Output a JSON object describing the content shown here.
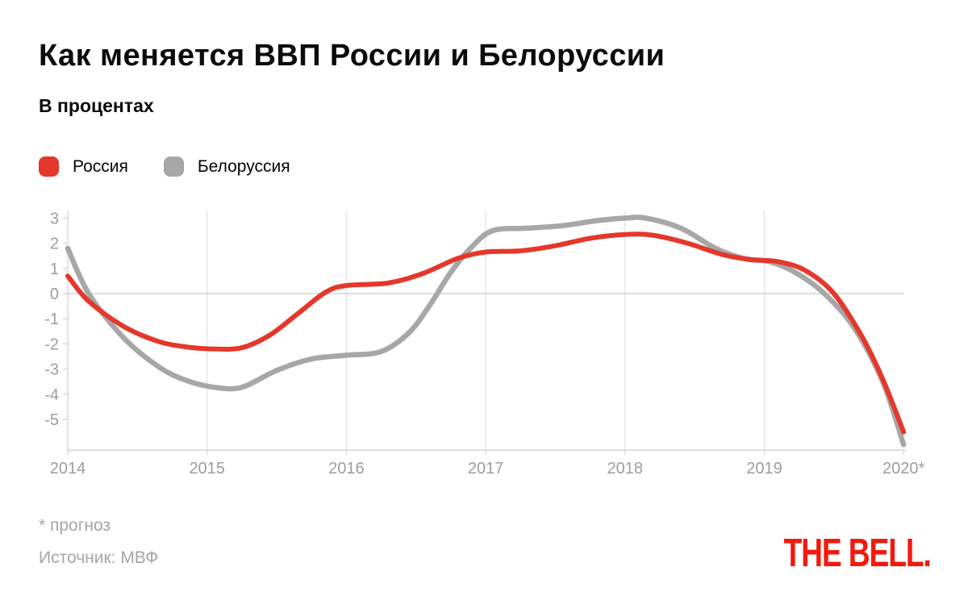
{
  "header": {
    "title": "Как меняется ВВП России и Белоруссии",
    "subtitle": "В процентах"
  },
  "legend": [
    {
      "id": "russia",
      "label": "Россия",
      "color": "#e5372c"
    },
    {
      "id": "belarus",
      "label": "Белоруссия",
      "color": "#a7a7a7"
    }
  ],
  "footer": {
    "footnote": "* прогноз",
    "source": "Источник: МВФ",
    "logo": "THE BELL."
  },
  "colors": {
    "background": "#ffffff",
    "title_text": "#0c0c0c",
    "grid": "#e4e4e4",
    "axis": "#d6d6d6",
    "zero_line": "#c9c9c9",
    "tick_text": "#9d9d9d",
    "footer_text": "#a5a5a5",
    "logo_red": "#f3190d",
    "russia_red": "#e5372c",
    "belarus_gray": "#a7a7a7"
  },
  "chart_data": {
    "type": "line",
    "title": "Как меняется ВВП России и Белоруссии",
    "subtitle": "В процентах",
    "xlabel": "",
    "ylabel": "проценты",
    "x_ticks": [
      "2014",
      "2015",
      "2016",
      "2017",
      "2018",
      "2019",
      "2020*"
    ],
    "y_ticks": [
      3,
      2,
      1,
      0,
      -1,
      -2,
      -3,
      -4,
      -5
    ],
    "xlim": [
      2014,
      2020
    ],
    "ylim": [
      -6.2,
      3.3
    ],
    "grid": "vertical year gridlines + horizontal zero line",
    "legend_position": "top-left above plot",
    "annual_values": {
      "Россия": {
        "2014": 0.7,
        "2015": -2.2,
        "2016": 0.3,
        "2017": 1.7,
        "2018": 2.4,
        "2019": 1.3,
        "2020*": -5.5
      },
      "Белоруссия": {
        "2014": 1.8,
        "2015": -3.7,
        "2016": -2.5,
        "2017": 2.5,
        "2018": 3.0,
        "2019": 1.3,
        "2020*": -6.0
      }
    },
    "series": [
      {
        "id": "belarus",
        "name": "Белоруссия",
        "color": "#a7a7a7",
        "points": [
          [
            2014.0,
            1.8
          ],
          [
            2014.15,
            0.0
          ],
          [
            2014.4,
            -1.75
          ],
          [
            2014.65,
            -2.9
          ],
          [
            2014.85,
            -3.45
          ],
          [
            2015.05,
            -3.72
          ],
          [
            2015.25,
            -3.72
          ],
          [
            2015.5,
            -3.05
          ],
          [
            2015.75,
            -2.6
          ],
          [
            2016.0,
            -2.45
          ],
          [
            2016.25,
            -2.3
          ],
          [
            2016.45,
            -1.55
          ],
          [
            2016.6,
            -0.45
          ],
          [
            2016.75,
            0.85
          ],
          [
            2016.9,
            1.85
          ],
          [
            2017.05,
            2.5
          ],
          [
            2017.3,
            2.6
          ],
          [
            2017.55,
            2.7
          ],
          [
            2017.8,
            2.9
          ],
          [
            2018.0,
            3.0
          ],
          [
            2018.15,
            3.0
          ],
          [
            2018.4,
            2.6
          ],
          [
            2018.65,
            1.8
          ],
          [
            2018.85,
            1.4
          ],
          [
            2019.05,
            1.25
          ],
          [
            2019.25,
            0.75
          ],
          [
            2019.45,
            -0.1
          ],
          [
            2019.65,
            -1.4
          ],
          [
            2019.85,
            -3.5
          ],
          [
            2020.0,
            -6.0
          ]
        ]
      },
      {
        "id": "russia",
        "name": "Россия",
        "color": "#e5372c",
        "points": [
          [
            2014.0,
            0.7
          ],
          [
            2014.15,
            -0.3
          ],
          [
            2014.4,
            -1.3
          ],
          [
            2014.65,
            -1.9
          ],
          [
            2014.85,
            -2.12
          ],
          [
            2015.05,
            -2.2
          ],
          [
            2015.25,
            -2.15
          ],
          [
            2015.45,
            -1.65
          ],
          [
            2015.65,
            -0.8
          ],
          [
            2015.85,
            0.05
          ],
          [
            2016.0,
            0.32
          ],
          [
            2016.3,
            0.42
          ],
          [
            2016.55,
            0.8
          ],
          [
            2016.8,
            1.4
          ],
          [
            2017.0,
            1.65
          ],
          [
            2017.25,
            1.7
          ],
          [
            2017.5,
            1.9
          ],
          [
            2017.75,
            2.2
          ],
          [
            2018.0,
            2.35
          ],
          [
            2018.2,
            2.32
          ],
          [
            2018.45,
            2.0
          ],
          [
            2018.7,
            1.55
          ],
          [
            2018.9,
            1.35
          ],
          [
            2019.1,
            1.27
          ],
          [
            2019.3,
            0.9
          ],
          [
            2019.5,
            0.0
          ],
          [
            2019.7,
            -1.7
          ],
          [
            2019.85,
            -3.4
          ],
          [
            2020.0,
            -5.5
          ]
        ]
      }
    ]
  }
}
